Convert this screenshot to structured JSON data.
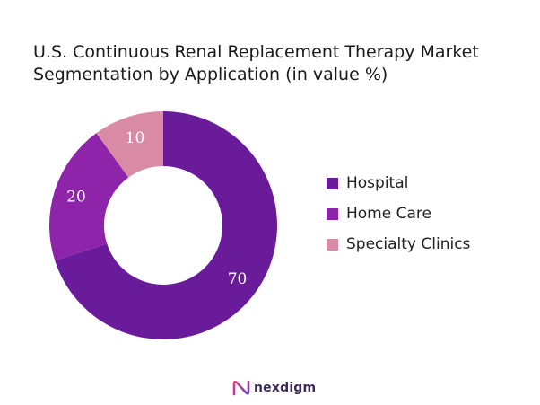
{
  "chart_data": {
    "type": "pie",
    "title_line1": "U.S. Continuous Renal Replacement Therapy Market",
    "title_line2": "Segmentation by Application (in value %)",
    "categories": [
      "Hospital",
      "Home Care",
      "Specialty Clinics"
    ],
    "values": [
      70,
      20,
      10
    ],
    "colors": [
      "#6a1b9a",
      "#8e24aa",
      "#d98ba6"
    ],
    "legend_position": "right",
    "donut": true
  },
  "brand": {
    "name": "nexdigm"
  }
}
